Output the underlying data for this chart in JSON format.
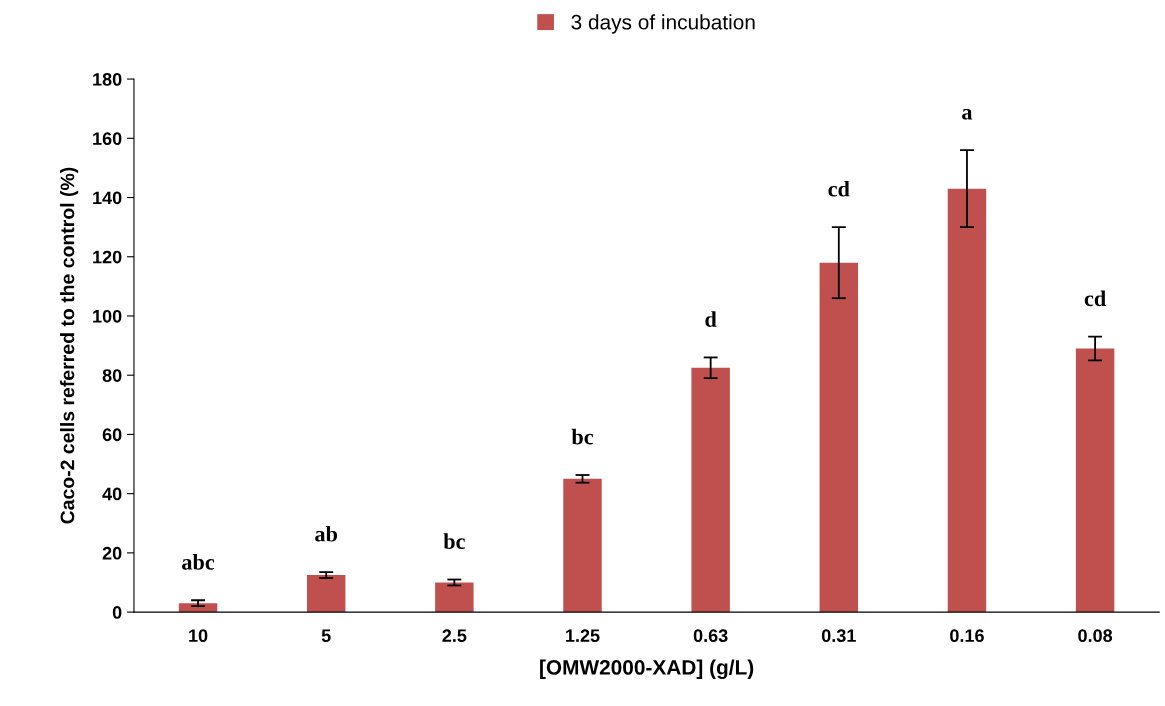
{
  "chart_data": {
    "type": "bar",
    "xlabel": "[OMW2000-XAD] (g/L)",
    "ylabel": "Caco-2 cells referred to the control (%)",
    "categories": [
      "10",
      "5",
      "2.5",
      "1.25",
      "0.63",
      "0.31",
      "0.16",
      "0.08"
    ],
    "series": [
      {
        "name": "3 days of incubation",
        "color": "#c0504d",
        "values": [
          3,
          12.5,
          10,
          45,
          82.5,
          118,
          143,
          89
        ],
        "errors": [
          1,
          1,
          1,
          1.3,
          3.5,
          12,
          13,
          4
        ]
      }
    ],
    "ylim": [
      0,
      180
    ],
    "yticks": [
      0,
      20,
      40,
      60,
      80,
      100,
      120,
      140,
      160,
      180
    ],
    "grid": false,
    "legend": "top",
    "annotations": [
      "abc",
      "ab",
      "bc",
      "bc",
      "d",
      "cd",
      "a",
      "cd"
    ]
  }
}
